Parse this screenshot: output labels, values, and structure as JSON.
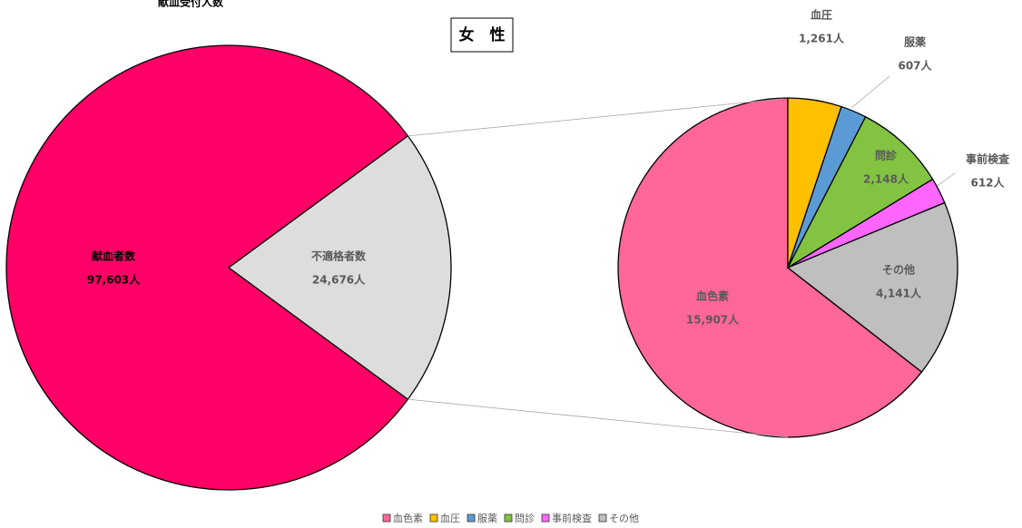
{
  "chart_data": [
    {
      "type": "pie",
      "title": "献血受付人数",
      "subtitle": "女　性",
      "categories": [
        "献血者数",
        "不適格者数"
      ],
      "values": [
        97603,
        24676
      ],
      "value_labels": [
        "97,603人",
        "24,676人"
      ],
      "colors": [
        "#FF0066",
        "#DDDDDD"
      ],
      "label_colors": [
        "#000000",
        "#595959"
      ]
    },
    {
      "type": "pie",
      "categories": [
        "血色素",
        "血圧",
        "服薬",
        "問診",
        "事前検査",
        "その他"
      ],
      "values": [
        15907,
        1261,
        607,
        2148,
        612,
        4141
      ],
      "value_labels": [
        "15,907人",
        "1,261人",
        "607人",
        "2,148人",
        "612人",
        "4,141人"
      ],
      "colors": [
        "#FF6699",
        "#FFC000",
        "#5B9BD5",
        "#82C341",
        "#FF66FF",
        "#BFBFBF"
      ],
      "legend": "bottom"
    }
  ]
}
